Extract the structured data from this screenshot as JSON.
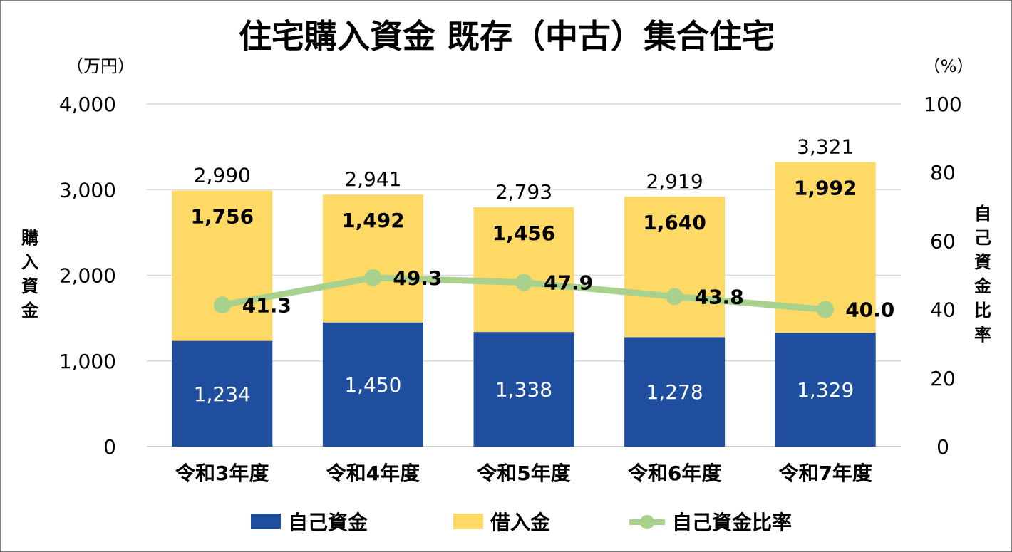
{
  "chart_data": {
    "type": "bar",
    "stacked": true,
    "title": "住宅購入資金 既存（中古）集合住宅",
    "categories": [
      "令和3年度",
      "令和4年度",
      "令和5年度",
      "令和6年度",
      "令和7年度"
    ],
    "series": [
      {
        "name": "自己資金",
        "type": "bar",
        "axis": "left",
        "color": "#1f4e9f",
        "values": [
          1234,
          1450,
          1338,
          1278,
          1329
        ],
        "labels": [
          "1,234",
          "1,450",
          "1,338",
          "1,278",
          "1,329"
        ]
      },
      {
        "name": "借入金",
        "type": "bar",
        "axis": "left",
        "color": "#ffd966",
        "values": [
          1756,
          1492,
          1456,
          1640,
          1992
        ],
        "labels": [
          "1,756",
          "1,492",
          "1,456",
          "1,640",
          "1,992"
        ]
      },
      {
        "name": "自己資金比率",
        "type": "line",
        "axis": "right",
        "color": "#a9d18e",
        "values": [
          41.3,
          49.3,
          47.9,
          43.8,
          40.0
        ],
        "labels": [
          "41.3",
          "49.3",
          "47.9",
          "43.8",
          "40.0"
        ]
      }
    ],
    "totals": [
      2990,
      2941,
      2793,
      2919,
      3321
    ],
    "total_labels": [
      "2,990",
      "2,941",
      "2,793",
      "2,919",
      "3,321"
    ],
    "y_left": {
      "label": "購入資金",
      "unit": "（万円）",
      "range": [
        0,
        4000
      ],
      "ticks": [
        "0",
        "1,000",
        "2,000",
        "3,000",
        "4,000"
      ]
    },
    "y_right": {
      "label": "自己資金比率",
      "unit": "（%）",
      "range": [
        0,
        100
      ],
      "ticks": [
        "0",
        "20",
        "40",
        "60",
        "80",
        "100"
      ]
    },
    "grid": true,
    "legend": "bottom"
  }
}
